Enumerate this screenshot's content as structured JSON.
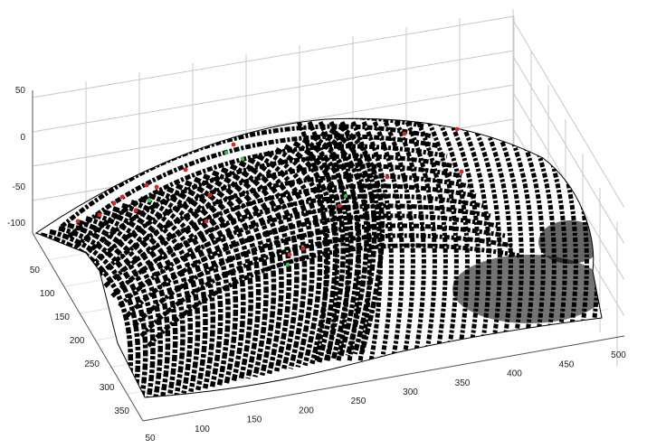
{
  "chart_data": {
    "type": "surface3d",
    "title": "",
    "xlabel": "",
    "ylabel": "",
    "zlabel": "",
    "grid": true,
    "xlim": [
      0,
      500
    ],
    "ylim": [
      0,
      350
    ],
    "zlim": [
      -100,
      50
    ],
    "x_ticks": [
      "50",
      "100",
      "150",
      "200",
      "250",
      "300",
      "350",
      "400",
      "450",
      "500"
    ],
    "y_ticks": [
      "50",
      "100",
      "150",
      "200",
      "250",
      "300",
      "350"
    ],
    "z_ticks": [
      "50",
      "0",
      "-50",
      "-100"
    ],
    "surface": "curved fingerprint surface with dense black-and-white ridge texture",
    "markers": {
      "red": "minutiae points (red)",
      "green": "minutiae points (green)"
    },
    "colors": {
      "ridge": "#000000",
      "valley": "#ffffff",
      "marker_red": "#e0261c",
      "marker_green": "#31c93a",
      "grid": "#c8c8c8",
      "axis": "#555555"
    }
  }
}
